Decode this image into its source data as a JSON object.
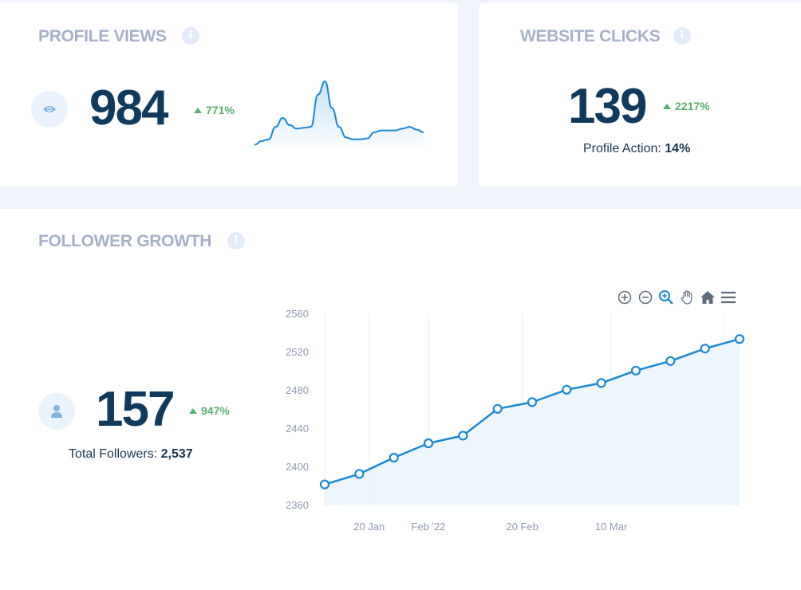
{
  "profile_views": {
    "title": "PROFILE VIEWS",
    "value": "984",
    "delta": "771%",
    "sparkline": [
      4,
      8,
      10,
      24,
      34,
      26,
      22,
      23,
      24,
      60,
      75,
      45,
      24,
      12,
      10,
      10,
      11,
      18,
      20,
      20,
      20,
      22,
      24,
      21,
      18
    ]
  },
  "website_clicks": {
    "title": "WEBSITE CLICKS",
    "value": "139",
    "delta": "2217%",
    "profile_action_label": "Profile Action:",
    "profile_action_value": "14%"
  },
  "follower_growth": {
    "title": "FOLLOWER GROWTH",
    "value": "157",
    "delta": "947%",
    "total_label": "Total Followers:",
    "total_value": "2,537"
  },
  "icons": {
    "info": "info-icon",
    "views": "eye-icon",
    "followers": "user-icon",
    "toolbar": [
      "zoom-in-icon",
      "zoom-out-icon",
      "zoom-select-icon",
      "pan-hand-icon",
      "home-icon",
      "menu-icon"
    ]
  },
  "colors": {
    "accent": "#1a88d6",
    "positive": "#5bae6e",
    "number": "#0f3a5e",
    "title": "#a5b0c9"
  },
  "chart_data": {
    "type": "line",
    "x": [
      "2022-01-11",
      "2022-01-18",
      "2022-01-25",
      "2022-02-01",
      "2022-02-08",
      "2022-02-15",
      "2022-02-22",
      "2022-03-01",
      "2022-03-08",
      "2022-03-15",
      "2022-03-22",
      "2022-03-29",
      "2022-04-05"
    ],
    "series": [
      {
        "values": [
          2382,
          2393,
          2410,
          2425,
          2433,
          2461,
          2468,
          2481,
          2488,
          2501,
          2511,
          2524,
          2534
        ]
      }
    ],
    "x_ticks": [
      "20 Jan",
      "Feb '22",
      "20 Feb",
      "10 Mar"
    ],
    "x_tick_dates": [
      "2022-01-20",
      "2022-02-01",
      "2022-02-20",
      "2022-03-10"
    ],
    "y_ticks": [
      "2560",
      "2520",
      "2480",
      "2440",
      "2400",
      "2360"
    ],
    "ylim": [
      2360,
      2560
    ],
    "xlim": [
      "2022-01-11",
      "2022-04-05"
    ],
    "grid": "vertical",
    "area_fill": true,
    "markers": true
  }
}
